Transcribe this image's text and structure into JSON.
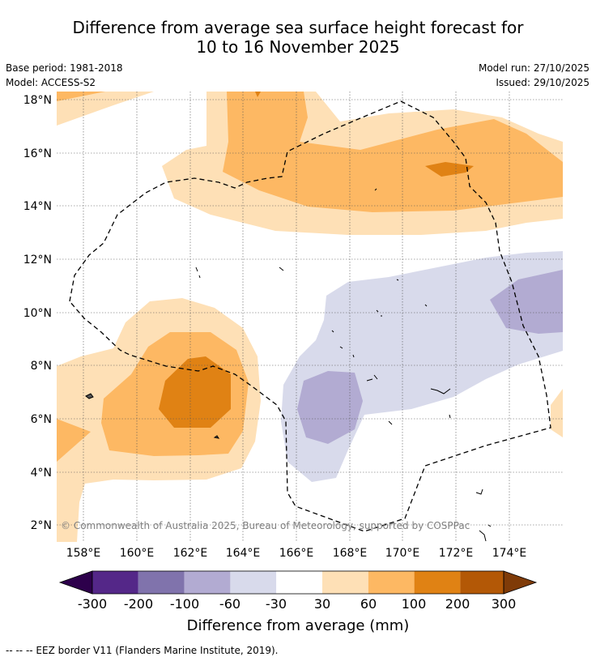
{
  "title_line1": "Difference from average sea surface height forecast for",
  "title_line2": "10 to 16 November 2025",
  "base_period": "Base period: 1981-2018",
  "model": "Model: ACCESS-S2",
  "model_run": "Model run: 27/10/2025",
  "issued": "Issued: 29/10/2025",
  "x_ticks": [
    "158°E",
    "160°E",
    "162°E",
    "164°E",
    "166°E",
    "168°E",
    "170°E",
    "172°E",
    "174°E"
  ],
  "y_ticks": [
    "18°N",
    "16°N",
    "14°N",
    "12°N",
    "10°N",
    "8°N",
    "6°N",
    "4°N",
    "2°N"
  ],
  "copyright": "© Commonwealth of Australia 2025, Bureau of Meteorology, supported by COSPPac",
  "colorbar": {
    "ticks": [
      "-300",
      "-200",
      "-100",
      "-60",
      "-30",
      "30",
      "60",
      "100",
      "200",
      "300"
    ],
    "colors": [
      "#2d004b",
      "#542788",
      "#8073ac",
      "#b2abd2",
      "#d8daeb",
      "#ffffff",
      "#fee0b6",
      "#fdb863",
      "#e08214",
      "#b35806",
      "#7f3b08"
    ],
    "label": "Difference from average (mm)"
  },
  "footnote": "--  --  -- EEZ border V11 (Flanders Marine Institute, 2019)."
}
